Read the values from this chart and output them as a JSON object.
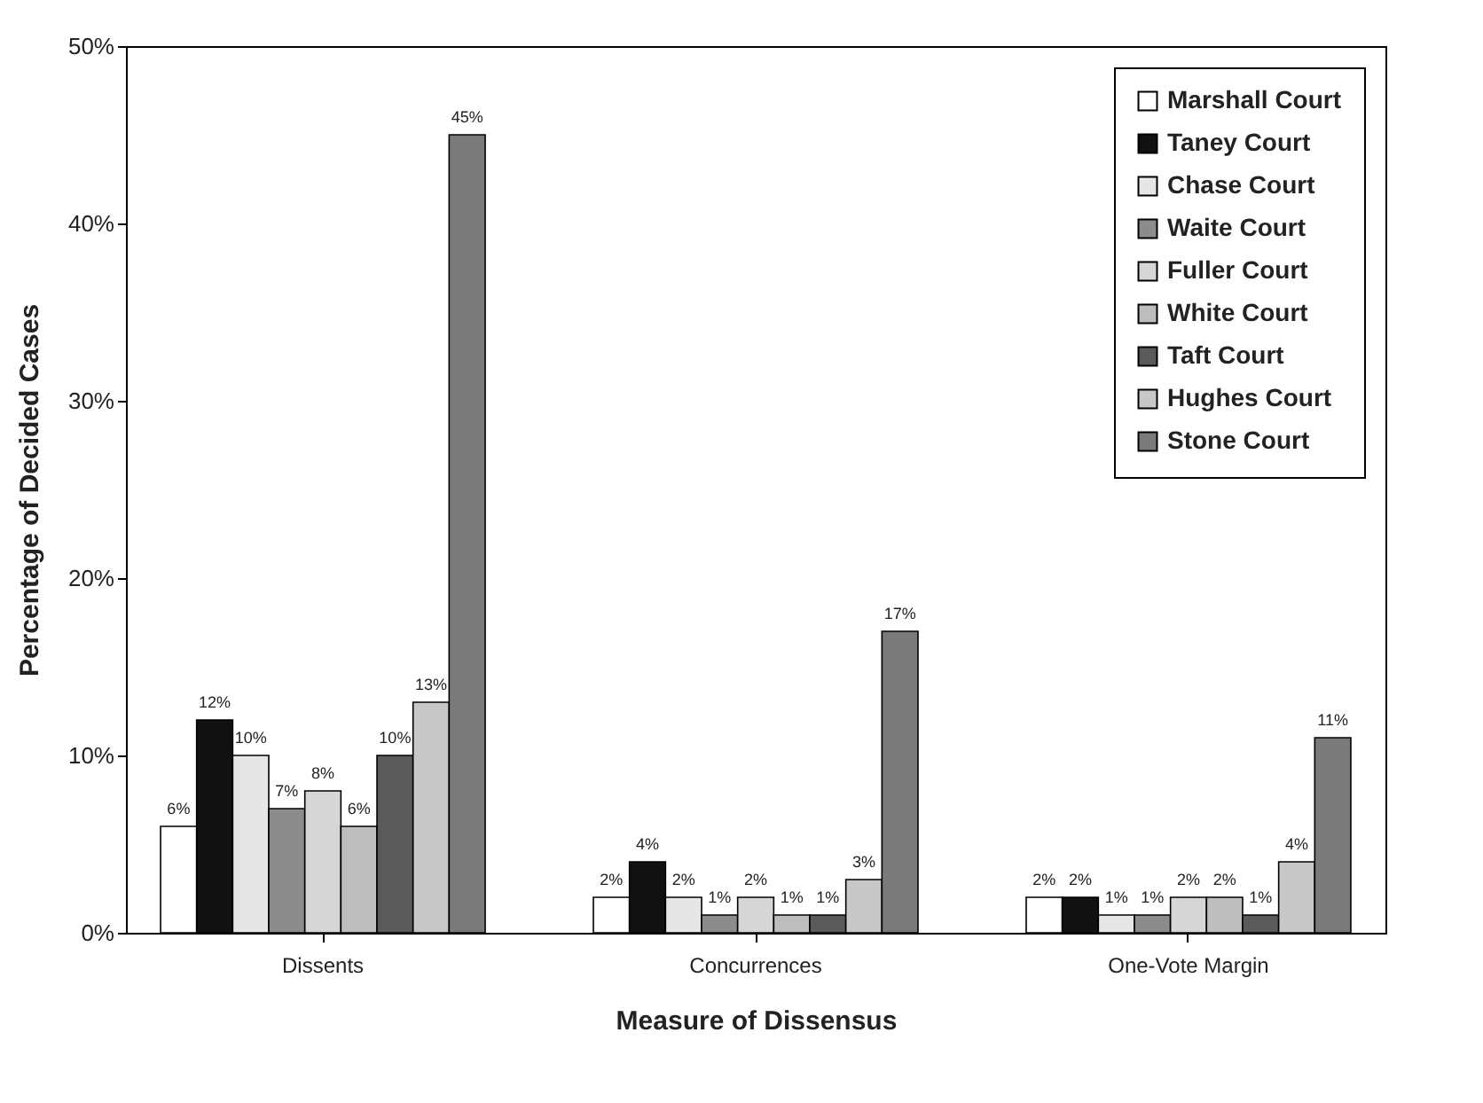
{
  "chart_data": {
    "type": "bar",
    "xlabel": "Measure of Dissensus",
    "ylabel": "Percentage of Decided Cases",
    "categories": [
      "Dissents",
      "Concurrences",
      "One-Vote Margin"
    ],
    "ylim": [
      0,
      50
    ],
    "yticks": [
      {
        "value": 0,
        "label": "0%"
      },
      {
        "value": 10,
        "label": "10%"
      },
      {
        "value": 20,
        "label": "20%"
      },
      {
        "value": 30,
        "label": "30%"
      },
      {
        "value": 40,
        "label": "40%"
      },
      {
        "value": 50,
        "label": "50%"
      }
    ],
    "grid": false,
    "legend": "top right",
    "series": [
      {
        "name": "Marshall Court",
        "color": "#ffffff",
        "values": [
          6,
          2,
          2
        ],
        "value_labels": [
          "6%",
          "2%",
          "2%"
        ]
      },
      {
        "name": "Taney Court",
        "color": "#111111",
        "values": [
          12,
          4,
          2
        ],
        "value_labels": [
          "12%",
          "4%",
          "2%"
        ]
      },
      {
        "name": "Chase Court",
        "color": "#e6e6e6",
        "values": [
          10,
          2,
          1
        ],
        "value_labels": [
          "10%",
          "2%",
          "1%"
        ]
      },
      {
        "name": "Waite Court",
        "color": "#8c8c8c",
        "values": [
          7,
          1,
          1
        ],
        "value_labels": [
          "7%",
          "1%",
          "1%"
        ]
      },
      {
        "name": "Fuller Court",
        "color": "#d6d6d6",
        "values": [
          8,
          2,
          2
        ],
        "value_labels": [
          "8%",
          "2%",
          "2%"
        ]
      },
      {
        "name": "White Court",
        "color": "#bdbdbd",
        "values": [
          6,
          1,
          2
        ],
        "value_labels": [
          "6%",
          "1%",
          "2%"
        ]
      },
      {
        "name": "Taft Court",
        "color": "#5a5a5a",
        "values": [
          10,
          1,
          1
        ],
        "value_labels": [
          "10%",
          "1%",
          "1%"
        ]
      },
      {
        "name": "Hughes Court",
        "color": "#c8c8c8",
        "values": [
          13,
          3,
          4
        ],
        "value_labels": [
          "13%",
          "3%",
          "4%"
        ]
      },
      {
        "name": "Stone Court",
        "color": "#7a7a7a",
        "values": [
          45,
          17,
          11
        ],
        "value_labels": [
          "45%",
          "17%",
          "11%"
        ]
      }
    ]
  }
}
